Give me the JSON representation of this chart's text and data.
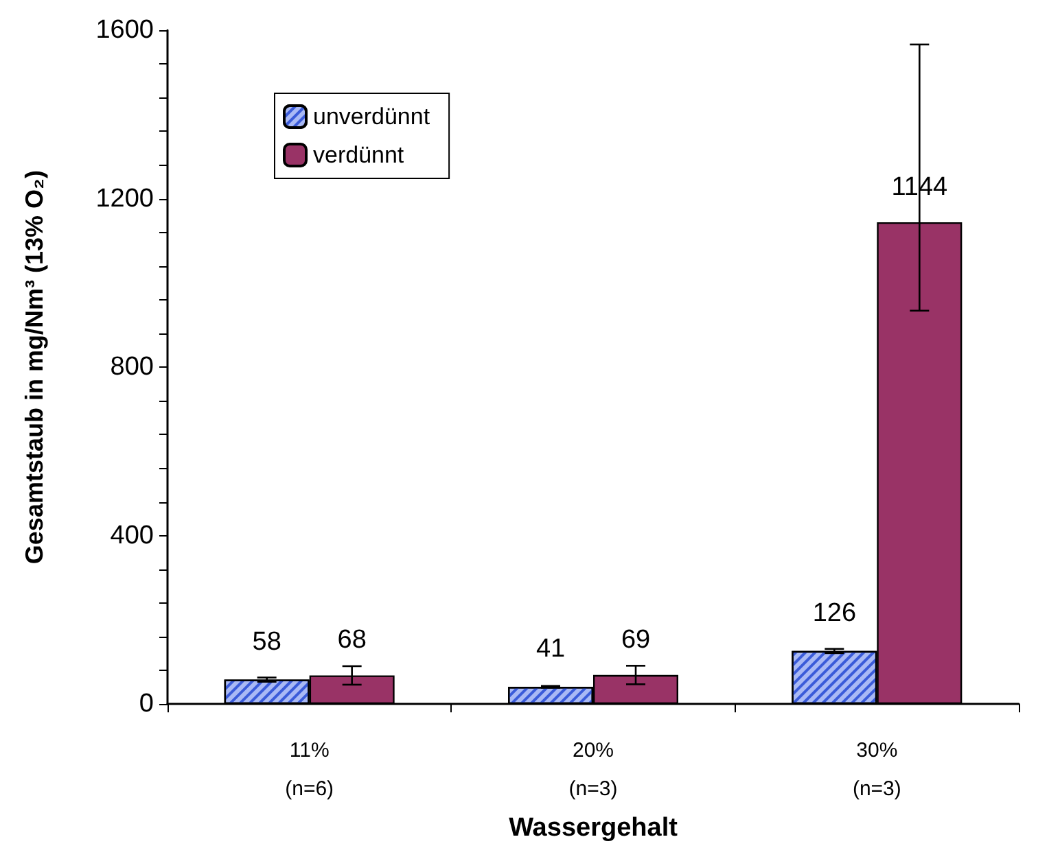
{
  "chart_data": {
    "type": "bar",
    "xlabel": "Wassergehalt",
    "ylabel": "Gesamtstaub in mg/Nm³ (13% O₂)",
    "categories": [
      "11%\n(n=6)",
      "20%\n(n=3)",
      "30%\n(n=3)"
    ],
    "series": [
      {
        "name": "unverdünnt",
        "color": "#a9b9f5",
        "values": [
          58,
          41,
          126
        ],
        "errors": [
          5,
          2,
          5
        ]
      },
      {
        "name": "verdünnt",
        "color": "#993366",
        "values": [
          68,
          69,
          1144
        ],
        "errors": [
          22,
          22,
          [
            934,
            1566
          ]
        ]
      }
    ],
    "ylim": [
      0,
      1600
    ],
    "yticks": [
      0,
      {
        "value": 80,
        "label": null
      },
      {
        "value": 160,
        "label": null
      },
      {
        "value": 240,
        "label": null
      },
      {
        "value": 320,
        "label": null
      },
      400,
      {
        "value": 480,
        "label": null
      },
      {
        "value": 560,
        "label": null
      },
      {
        "value": 640,
        "label": null
      },
      {
        "value": 720,
        "label": null
      },
      800,
      {
        "value": 880,
        "label": null
      },
      {
        "value": 960,
        "label": null
      },
      {
        "value": 1040,
        "label": null
      },
      {
        "value": 1120,
        "label": null
      },
      1200,
      {
        "value": 1280,
        "label": null
      },
      {
        "value": 1360,
        "label": null
      },
      {
        "value": 1440,
        "label": null
      },
      {
        "value": 1520,
        "label": null
      },
      1600
    ],
    "data_labels": true,
    "grid": false,
    "legend": "top left"
  }
}
